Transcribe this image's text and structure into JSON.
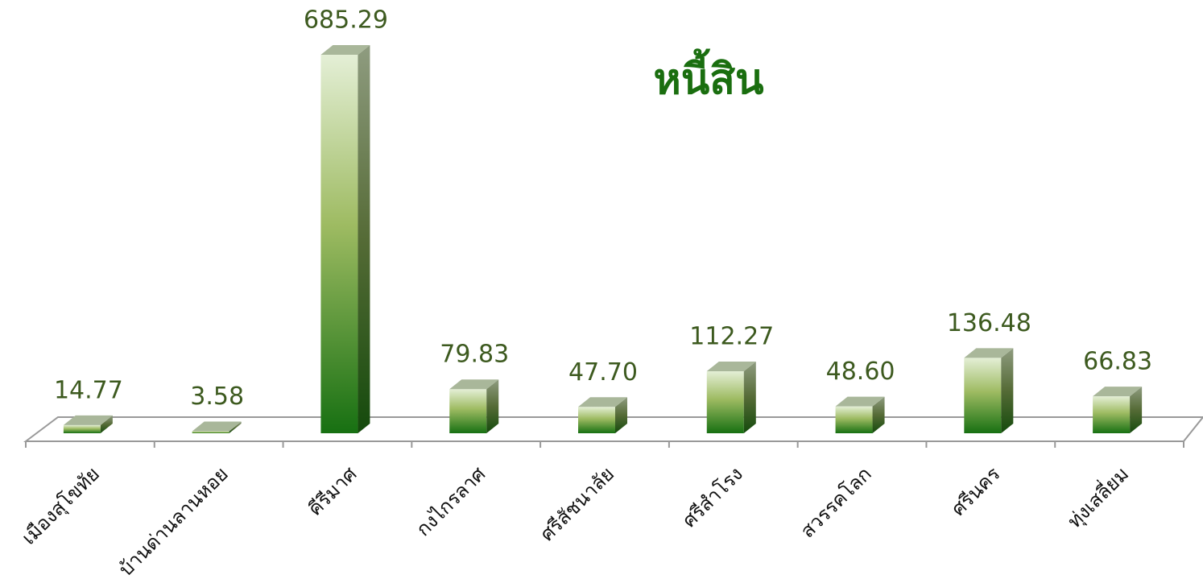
{
  "chart_data": {
    "type": "bar3d",
    "title": "หนี้สิน",
    "categories": [
      "เมืองสุโขทัย",
      "บ้านด่านลานหอย",
      "คีรีมาศ",
      "กงไกรลาศ",
      "ศรีสัชนาลัย",
      "ศรีสำโรง",
      "สวรรคโลก",
      "ศรีนคร",
      "ทุ่งเสลี่ยม"
    ],
    "values": [
      14.77,
      3.58,
      685.29,
      79.83,
      47.7,
      112.27,
      48.6,
      136.48,
      66.83
    ],
    "value_labels": [
      "14.77",
      "3.58",
      "685.29",
      "79.83",
      "47.70",
      "112.27",
      "48.60",
      "136.48",
      "66.83"
    ],
    "color": "#1a7314"
  }
}
